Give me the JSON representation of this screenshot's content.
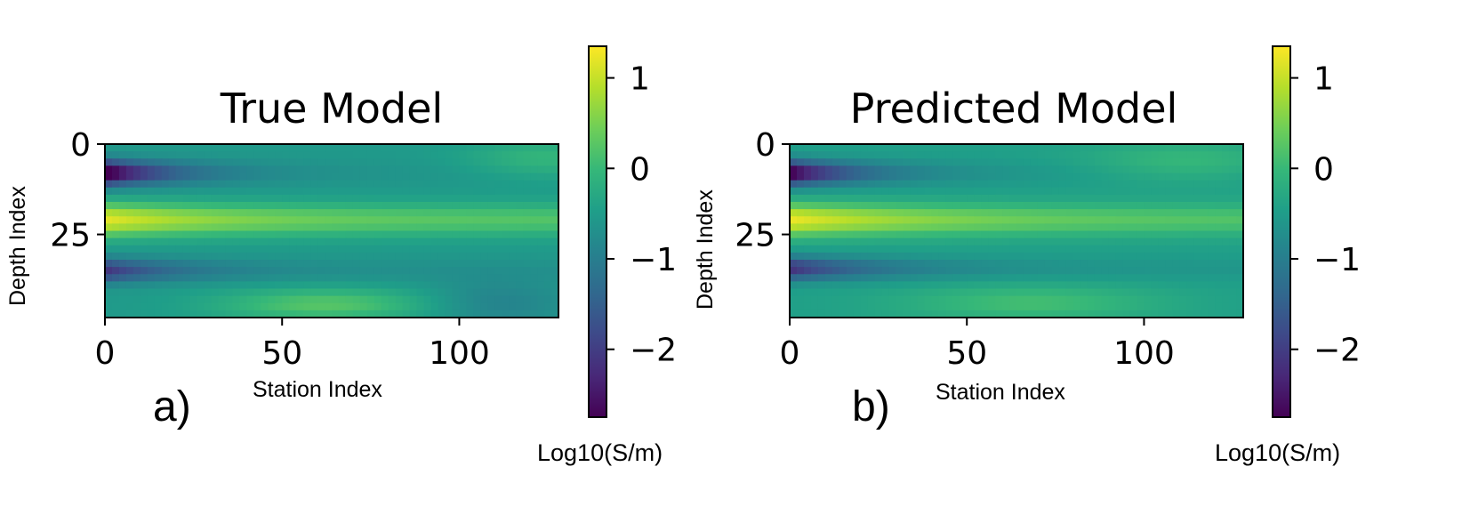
{
  "colors": {
    "viridis": [
      "#440154",
      "#482878",
      "#3e4989",
      "#31688e",
      "#26828e",
      "#1f9e89",
      "#35b779",
      "#6ece58",
      "#b5de2b",
      "#fde725"
    ],
    "background": "#ffffff",
    "axis": "#000000"
  },
  "chart_data": [
    {
      "type": "heatmap",
      "title": "True Model",
      "panel_label": "a)",
      "xlabel": "Station Index",
      "ylabel": "Depth Index",
      "xlim": [
        0,
        128
      ],
      "ylim": [
        48,
        0
      ],
      "xticks": [
        0,
        50,
        100
      ],
      "yticks": [
        0,
        25
      ],
      "colorbar": {
        "label": "Log10(S/m)",
        "range": [
          -2.75,
          1.35
        ],
        "ticks": [
          1,
          0,
          -1,
          -2
        ],
        "tick_labels": [
          "1",
          "0",
          "−1",
          "−2"
        ]
      },
      "field": {
        "background": -0.55,
        "features": [
          {
            "depth_center": 8,
            "depth_sigma": 2.4,
            "peak": -2.65,
            "x_decay": 19,
            "x_floor": 0.02,
            "x_end": 128
          },
          {
            "depth_center": 21,
            "depth_sigma": 3.2,
            "peak": 1.75,
            "x_decay": 38,
            "x_floor": 0.42,
            "x_end": 128
          },
          {
            "depth_center": 35,
            "depth_sigma": 2.3,
            "peak": -1.6,
            "x_decay": 22,
            "x_floor": 0.08,
            "x_end": 128
          },
          {
            "depth_center": 44.5,
            "depth_sigma": 3.2,
            "peak": 0.8,
            "x_decay": 300,
            "x_floor": 0.0,
            "x_center": 62,
            "x_sigma": 22
          },
          {
            "depth_center": 44,
            "depth_sigma": 4.5,
            "peak": -0.4,
            "x_decay": 300,
            "x_floor": 0.0,
            "x_center": 110,
            "x_sigma": 14
          },
          {
            "depth_center": 4,
            "depth_sigma": 4.0,
            "peak": 0.5,
            "x_decay": 300,
            "x_floor": 0.0,
            "x_center": 125,
            "x_sigma": 16
          }
        ]
      }
    },
    {
      "type": "heatmap",
      "title": "Predicted Model",
      "panel_label": "b)",
      "xlabel": "Station Index",
      "ylabel": "Depth Index",
      "xlim": [
        0,
        128
      ],
      "ylim": [
        48,
        0
      ],
      "xticks": [
        0,
        50,
        100
      ],
      "yticks": [
        0,
        25
      ],
      "colorbar": {
        "label": "Log10(S/m)",
        "range": [
          -2.75,
          1.35
        ],
        "ticks": [
          1,
          0,
          -1,
          -2
        ],
        "tick_labels": [
          "1",
          "0",
          "−1",
          "−2"
        ]
      },
      "field": {
        "background": -0.45,
        "features": [
          {
            "depth_center": 8,
            "depth_sigma": 2.4,
            "peak": -2.55,
            "x_decay": 20,
            "x_floor": 0.03,
            "x_end": 128
          },
          {
            "depth_center": 21,
            "depth_sigma": 3.1,
            "peak": 1.7,
            "x_decay": 45,
            "x_floor": 0.35,
            "x_end": 128
          },
          {
            "depth_center": 34.5,
            "depth_sigma": 2.3,
            "peak": -1.75,
            "x_decay": 26,
            "x_floor": 0.08,
            "x_end": 128
          },
          {
            "depth_center": 44,
            "depth_sigma": 3.5,
            "peak": 0.55,
            "x_decay": 300,
            "x_floor": 0.0,
            "x_center": 68,
            "x_sigma": 26
          },
          {
            "depth_center": 5,
            "depth_sigma": 4.0,
            "peak": 0.45,
            "x_decay": 300,
            "x_floor": 0.0,
            "x_center": 112,
            "x_sigma": 20
          }
        ]
      }
    }
  ]
}
